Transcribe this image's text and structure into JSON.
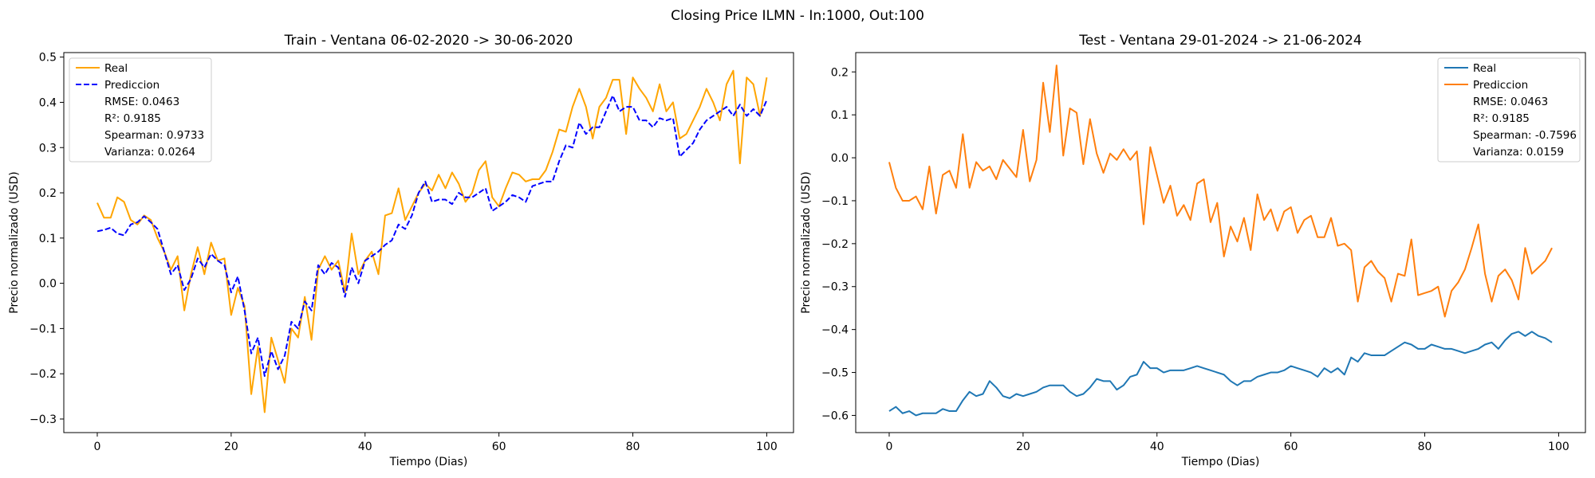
{
  "figure": {
    "suptitle": "Closing Price ILMN - In:1000, Out:100"
  },
  "chart_data": [
    {
      "type": "line",
      "title": "Train - Ventana 06-02-2020 -> 30-06-2020",
      "xlabel": "Tiempo (Dias)",
      "ylabel": "Precio normalizado (USD)",
      "xlim": [
        -5,
        104
      ],
      "ylim": [
        -0.33,
        0.51
      ],
      "xticks": [
        0,
        20,
        40,
        60,
        80,
        100
      ],
      "yticks": [
        -0.3,
        -0.2,
        -0.1,
        0.0,
        0.1,
        0.2,
        0.3,
        0.4,
        0.5
      ],
      "xtick_labels": [
        "0",
        "20",
        "40",
        "60",
        "80",
        "100"
      ],
      "ytick_labels": [
        "−0.3",
        "−0.2",
        "−0.1",
        "0.0",
        "0.1",
        "0.2",
        "0.3",
        "0.4",
        "0.5"
      ],
      "legend_position": "upper left",
      "legend_stats": [
        "RMSE: 0.0463",
        "R²: 0.9185",
        "Spearman: 0.9733",
        "Varianza: 0.0264"
      ],
      "series": [
        {
          "name": "Real",
          "color": "#ffa500",
          "dash": "solid",
          "values": [
            0.178,
            0.145,
            0.145,
            0.19,
            0.18,
            0.14,
            0.13,
            0.15,
            0.14,
            0.1,
            0.07,
            0.03,
            0.06,
            -0.06,
            0.02,
            0.08,
            0.02,
            0.09,
            0.05,
            0.055,
            -0.07,
            -0.01,
            -0.05,
            -0.245,
            -0.14,
            -0.285,
            -0.12,
            -0.17,
            -0.22,
            -0.1,
            -0.12,
            -0.03,
            -0.125,
            0.03,
            0.06,
            0.03,
            0.05,
            -0.02,
            0.11,
            0.02,
            0.05,
            0.07,
            0.02,
            0.15,
            0.155,
            0.21,
            0.14,
            0.17,
            0.2,
            0.22,
            0.205,
            0.24,
            0.21,
            0.245,
            0.22,
            0.18,
            0.2,
            0.25,
            0.27,
            0.19,
            0.17,
            0.21,
            0.245,
            0.24,
            0.225,
            0.23,
            0.23,
            0.25,
            0.29,
            0.34,
            0.335,
            0.39,
            0.43,
            0.39,
            0.32,
            0.39,
            0.41,
            0.45,
            0.45,
            0.33,
            0.455,
            0.43,
            0.41,
            0.38,
            0.44,
            0.38,
            0.4,
            0.32,
            0.33,
            0.36,
            0.39,
            0.43,
            0.4,
            0.36,
            0.44,
            0.47,
            0.265,
            0.455,
            0.44,
            0.37,
            0.455
          ]
        },
        {
          "name": "Prediccion",
          "color": "#0000ff",
          "dash": "dashed",
          "values": [
            0.115,
            0.118,
            0.123,
            0.11,
            0.106,
            0.13,
            0.135,
            0.148,
            0.135,
            0.12,
            0.07,
            0.02,
            0.04,
            -0.015,
            0.01,
            0.055,
            0.035,
            0.065,
            0.05,
            0.04,
            -0.02,
            0.015,
            -0.06,
            -0.155,
            -0.12,
            -0.205,
            -0.15,
            -0.19,
            -0.16,
            -0.085,
            -0.1,
            -0.04,
            -0.06,
            0.04,
            0.02,
            0.045,
            0.035,
            -0.03,
            0.035,
            0.0,
            0.05,
            0.06,
            0.07,
            0.085,
            0.095,
            0.13,
            0.12,
            0.15,
            0.2,
            0.225,
            0.18,
            0.185,
            0.185,
            0.175,
            0.2,
            0.19,
            0.19,
            0.2,
            0.21,
            0.16,
            0.17,
            0.18,
            0.195,
            0.19,
            0.18,
            0.215,
            0.22,
            0.225,
            0.225,
            0.27,
            0.305,
            0.3,
            0.355,
            0.33,
            0.345,
            0.345,
            0.38,
            0.415,
            0.38,
            0.39,
            0.39,
            0.36,
            0.36,
            0.345,
            0.365,
            0.36,
            0.365,
            0.28,
            0.295,
            0.31,
            0.34,
            0.36,
            0.37,
            0.38,
            0.39,
            0.37,
            0.395,
            0.37,
            0.385,
            0.37,
            0.405
          ]
        }
      ]
    },
    {
      "type": "line",
      "title": "Test - Ventana 29-01-2024 -> 21-06-2024",
      "xlabel": "Tiempo (Dias)",
      "ylabel": "Precio normalizado (USD)",
      "xlim": [
        -5,
        104
      ],
      "ylim": [
        -0.64,
        0.245
      ],
      "xticks": [
        0,
        20,
        40,
        60,
        80,
        100
      ],
      "yticks": [
        -0.6,
        -0.5,
        -0.4,
        -0.3,
        -0.2,
        -0.1,
        0.0,
        0.1,
        0.2
      ],
      "xtick_labels": [
        "0",
        "20",
        "40",
        "60",
        "80",
        "100"
      ],
      "ytick_labels": [
        "−0.6",
        "−0.5",
        "−0.4",
        "−0.3",
        "−0.2",
        "−0.1",
        "0.0",
        "0.1",
        "0.2"
      ],
      "legend_position": "upper right",
      "legend_stats": [
        "RMSE: 0.0463",
        "R²: 0.9185",
        "Spearman: -0.7596",
        "Varianza: 0.0159"
      ],
      "series": [
        {
          "name": "Real",
          "color": "#1f77b4",
          "dash": "solid",
          "values": [
            -0.59,
            -0.58,
            -0.595,
            -0.59,
            -0.6,
            -0.595,
            -0.595,
            -0.595,
            -0.585,
            -0.59,
            -0.59,
            -0.565,
            -0.545,
            -0.555,
            -0.55,
            -0.52,
            -0.535,
            -0.555,
            -0.56,
            -0.55,
            -0.555,
            -0.55,
            -0.545,
            -0.535,
            -0.53,
            -0.53,
            -0.53,
            -0.545,
            -0.555,
            -0.55,
            -0.535,
            -0.515,
            -0.52,
            -0.52,
            -0.54,
            -0.53,
            -0.51,
            -0.505,
            -0.475,
            -0.49,
            -0.49,
            -0.5,
            -0.495,
            -0.495,
            -0.495,
            -0.49,
            -0.485,
            -0.49,
            -0.495,
            -0.5,
            -0.505,
            -0.52,
            -0.53,
            -0.52,
            -0.52,
            -0.51,
            -0.505,
            -0.5,
            -0.5,
            -0.495,
            -0.485,
            -0.49,
            -0.495,
            -0.5,
            -0.51,
            -0.49,
            -0.5,
            -0.49,
            -0.505,
            -0.465,
            -0.475,
            -0.455,
            -0.46,
            -0.46,
            -0.46,
            -0.45,
            -0.44,
            -0.43,
            -0.435,
            -0.445,
            -0.445,
            -0.435,
            -0.44,
            -0.445,
            -0.445,
            -0.45,
            -0.455,
            -0.45,
            -0.445,
            -0.435,
            -0.43,
            -0.445,
            -0.425,
            -0.41,
            -0.405,
            -0.415,
            -0.405,
            -0.415,
            -0.42,
            -0.43
          ]
        },
        {
          "name": "Prediccion",
          "color": "#ff7f0e",
          "dash": "solid",
          "values": [
            -0.01,
            -0.07,
            -0.1,
            -0.1,
            -0.09,
            -0.12,
            -0.02,
            -0.13,
            -0.04,
            -0.03,
            -0.07,
            0.055,
            -0.07,
            -0.01,
            -0.03,
            -0.02,
            -0.05,
            -0.005,
            -0.025,
            -0.045,
            0.065,
            -0.055,
            -0.005,
            0.175,
            0.06,
            0.215,
            0.005,
            0.115,
            0.105,
            -0.015,
            0.09,
            0.01,
            -0.035,
            0.01,
            -0.005,
            0.02,
            -0.005,
            0.015,
            -0.155,
            0.025,
            -0.04,
            -0.105,
            -0.065,
            -0.135,
            -0.11,
            -0.145,
            -0.06,
            -0.05,
            -0.15,
            -0.105,
            -0.23,
            -0.16,
            -0.195,
            -0.14,
            -0.215,
            -0.085,
            -0.145,
            -0.12,
            -0.17,
            -0.125,
            -0.115,
            -0.175,
            -0.145,
            -0.135,
            -0.185,
            -0.185,
            -0.14,
            -0.205,
            -0.2,
            -0.215,
            -0.335,
            -0.255,
            -0.24,
            -0.265,
            -0.28,
            -0.335,
            -0.27,
            -0.275,
            -0.19,
            -0.32,
            -0.315,
            -0.31,
            -0.3,
            -0.37,
            -0.31,
            -0.29,
            -0.26,
            -0.21,
            -0.155,
            -0.27,
            -0.335,
            -0.275,
            -0.26,
            -0.285,
            -0.33,
            -0.21,
            -0.27,
            -0.255,
            -0.24,
            -0.21
          ]
        }
      ]
    }
  ]
}
